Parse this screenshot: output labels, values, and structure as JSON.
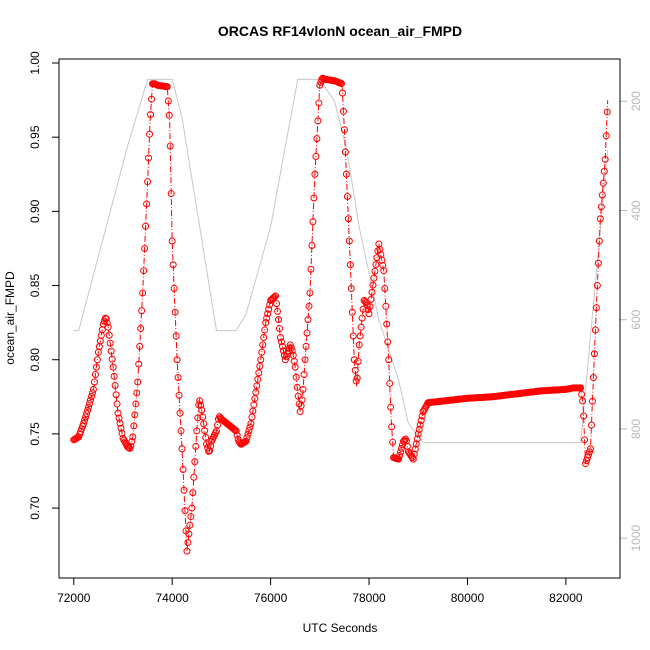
{
  "chart_data": {
    "type": "scatter",
    "title": "ORCAS RF14vlonN ocean_air_FMPD",
    "xlabel": "UTC Seconds",
    "ylabel": "ocean_air_FMPD",
    "xlim": [
      71700,
      83100
    ],
    "ylim": [
      0.665,
      1.0
    ],
    "y2lim": [
      1040,
      130
    ],
    "x_ticks": [
      72000,
      74000,
      76000,
      78000,
      80000,
      82000
    ],
    "x_tick_labels": [
      "72000",
      "74000",
      "76000",
      "78000",
      "80000",
      "82000"
    ],
    "y_ticks": [
      0.7,
      0.75,
      0.8,
      0.85,
      0.9,
      0.95,
      1.0
    ],
    "y_tick_labels": [
      "0.70",
      "0.75",
      "0.80",
      "0.85",
      "0.90",
      "0.95",
      "1.00"
    ],
    "y2_ticks": [
      200,
      400,
      600,
      800,
      1000
    ],
    "y2_tick_labels": [
      "200",
      "400",
      "600",
      "800",
      "1000"
    ],
    "grid": false,
    "legend": "none",
    "series": [
      {
        "role": "primary",
        "color": "#ff0000",
        "marker": "open-circle",
        "line": "dash-dot",
        "x": [
          72000,
          72100,
          72200,
          72300,
          72400,
          72500,
          72600,
          72650,
          72700,
          72800,
          72900,
          73000,
          73100,
          73150,
          73200,
          73300,
          73400,
          73500,
          73550,
          73600,
          73650,
          73700,
          73900,
          73950,
          74000,
          74100,
          74200,
          74250,
          74300,
          74400,
          74500,
          74550,
          74600,
          74700,
          74750,
          74800,
          74900,
          74950,
          75000,
          75300,
          75350,
          75400,
          75500,
          75600,
          75700,
          75800,
          75900,
          76000,
          76100,
          76150,
          76200,
          76300,
          76400,
          76450,
          76500,
          76550,
          76600,
          76650,
          76700,
          76800,
          76900,
          77000,
          77050,
          77100,
          77300,
          77450,
          77500,
          77600,
          77700,
          77750,
          77800,
          77900,
          77950,
          78000,
          78100,
          78200,
          78300,
          78400,
          78450,
          78500,
          78600,
          78700,
          78750,
          78800,
          78900,
          79000,
          79100,
          79200,
          80000,
          80500,
          81000,
          81500,
          82000,
          82150,
          82200,
          82300,
          82350,
          82400,
          82500,
          82600,
          82700,
          82800,
          82850
        ],
        "y": [
          0.746,
          0.748,
          0.757,
          0.768,
          0.78,
          0.805,
          0.824,
          0.829,
          0.822,
          0.795,
          0.764,
          0.747,
          0.741,
          0.74,
          0.748,
          0.785,
          0.845,
          0.92,
          0.96,
          0.986,
          0.986,
          0.985,
          0.984,
          0.96,
          0.88,
          0.8,
          0.74,
          0.705,
          0.671,
          0.7,
          0.752,
          0.774,
          0.766,
          0.743,
          0.737,
          0.745,
          0.752,
          0.762,
          0.76,
          0.752,
          0.745,
          0.743,
          0.745,
          0.757,
          0.778,
          0.8,
          0.825,
          0.84,
          0.843,
          0.83,
          0.815,
          0.8,
          0.81,
          0.805,
          0.795,
          0.778,
          0.765,
          0.775,
          0.8,
          0.845,
          0.925,
          0.985,
          0.99,
          0.989,
          0.988,
          0.986,
          0.955,
          0.88,
          0.8,
          0.782,
          0.81,
          0.84,
          0.838,
          0.831,
          0.855,
          0.878,
          0.86,
          0.8,
          0.76,
          0.734,
          0.733,
          0.745,
          0.747,
          0.738,
          0.733,
          0.75,
          0.765,
          0.771,
          0.774,
          0.775,
          0.777,
          0.779,
          0.78,
          0.781,
          0.781,
          0.781,
          0.77,
          0.73,
          0.74,
          0.82,
          0.895,
          0.935,
          0.975
        ]
      },
      {
        "role": "secondary",
        "axis": "right",
        "color": "#c8c8c8",
        "line": "solid",
        "x": [
          72000,
          72100,
          73100,
          73500,
          73600,
          74000,
          74200,
          74900,
          75300,
          75500,
          76000,
          76550,
          77000,
          77300,
          77550,
          77800,
          78200,
          78600,
          78800,
          79100,
          80000,
          81000,
          82000,
          82300,
          82850
        ],
        "y": [
          620,
          620,
          280,
          160,
          160,
          160,
          230,
          620,
          620,
          590,
          430,
          160,
          160,
          200,
          290,
          430,
          600,
          710,
          790,
          825,
          825,
          825,
          825,
          825,
          290
        ]
      }
    ]
  }
}
